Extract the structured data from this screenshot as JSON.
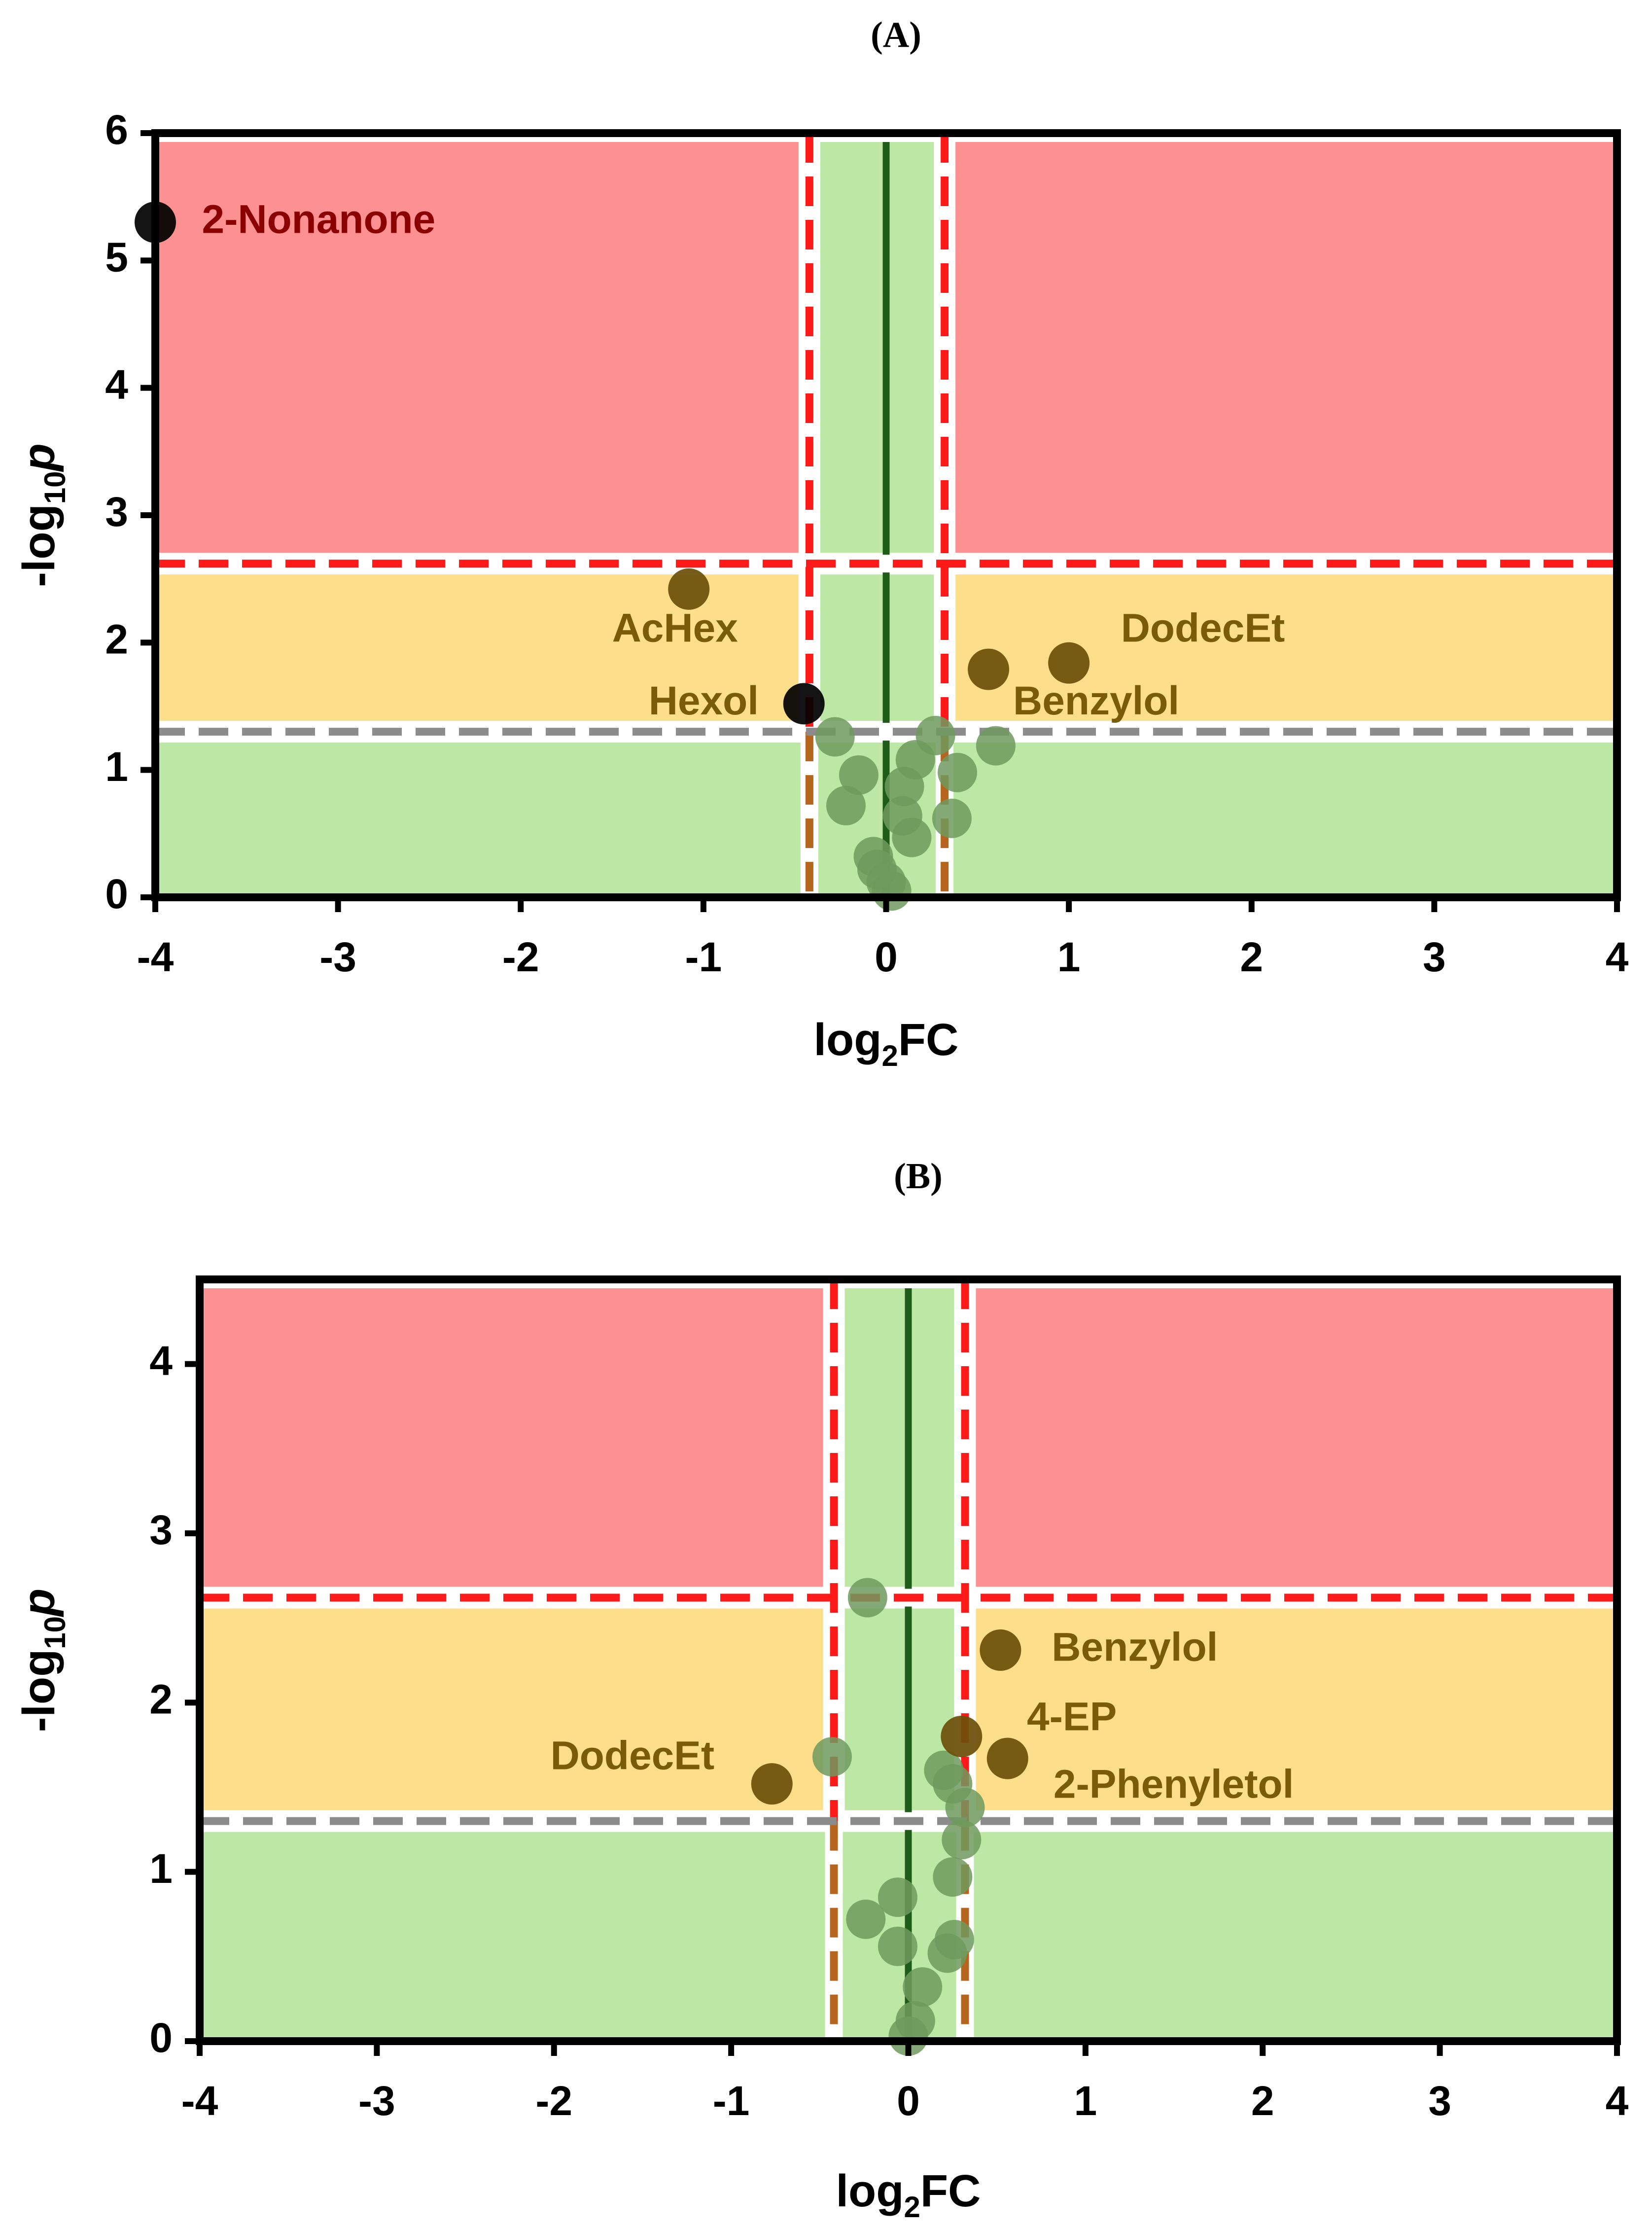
{
  "figure": {
    "panels": [
      "(A)",
      "(B)"
    ]
  },
  "colors": {
    "red_zone": "#fd9090",
    "yellow_zone": "#fddf8b",
    "green_zone": "#bde7a4",
    "center_line": "#1f5c1a",
    "threshold_red": "#ff1a1a",
    "threshold_gray": "#8c8c8c",
    "brown_dash": "#b5651d",
    "gray_point": "#6f9a5e",
    "gold_point": "#6b4f08",
    "gold_label": "#7a5c06",
    "red_label": "#8b0000",
    "black_point": "#000000",
    "axis": "#000000"
  },
  "chart_data": [
    {
      "type": "scatter",
      "title": "(A)",
      "xlabel_main": "log",
      "xlabel_sub": "2",
      "xlabel_tail": "FC",
      "ylabel_prefix": "-log",
      "ylabel_sub": "10",
      "ylabel_tail": "p",
      "xlim": [
        -4,
        4
      ],
      "ylim": [
        0,
        6
      ],
      "xticks": [
        -4,
        -3,
        -2,
        -1,
        0,
        1,
        2,
        3,
        4
      ],
      "yticks": [
        0,
        1,
        2,
        3,
        4,
        5,
        6
      ],
      "fc_low": -0.42,
      "fc_high": 0.32,
      "p_high": 2.62,
      "p_low": 1.3,
      "zone_x_inner": [
        -0.42,
        0.32
      ],
      "labeled_points": [
        {
          "x": -4.0,
          "y": 5.3,
          "label": "2-Nonanone",
          "class": "black",
          "label_dx": 0.12,
          "label_dy": 0,
          "label_color": "red"
        },
        {
          "x": -1.08,
          "y": 2.42,
          "label": "AcHex",
          "class": "gold",
          "label_dx": -0.42,
          "label_dy": -0.33,
          "label_color": "gold"
        },
        {
          "x": -0.45,
          "y": 1.52,
          "label": "Hexol",
          "class": "black",
          "label_dx": -0.85,
          "label_dy": 0,
          "label_color": "gold"
        },
        {
          "x": 0.56,
          "y": 1.79,
          "label": "Benzylol",
          "class": "gold",
          "label_dx": 0.0,
          "label_dy": -0.27,
          "label_color": "gold"
        },
        {
          "x": 1.0,
          "y": 1.84,
          "label": "DodecEt",
          "class": "gold",
          "label_dx": 0.15,
          "label_dy": 0.25,
          "label_color": "gold"
        }
      ],
      "background_points": [
        {
          "x": -0.28,
          "y": 1.26
        },
        {
          "x": -0.15,
          "y": 0.96
        },
        {
          "x": -0.22,
          "y": 0.72
        },
        {
          "x": 0.1,
          "y": 0.87
        },
        {
          "x": 0.16,
          "y": 1.08
        },
        {
          "x": 0.27,
          "y": 1.27
        },
        {
          "x": 0.39,
          "y": 0.98
        },
        {
          "x": 0.6,
          "y": 1.19
        },
        {
          "x": 0.09,
          "y": 0.64
        },
        {
          "x": 0.36,
          "y": 0.62
        },
        {
          "x": 0.14,
          "y": 0.47
        },
        {
          "x": -0.07,
          "y": 0.32
        },
        {
          "x": -0.05,
          "y": 0.22
        },
        {
          "x": 0.0,
          "y": 0.12
        },
        {
          "x": 0.03,
          "y": 0.05
        }
      ]
    },
    {
      "type": "scatter",
      "title": "(B)",
      "xlabel_main": "log",
      "xlabel_sub": "2",
      "xlabel_tail": "FC",
      "ylabel_prefix": "-log",
      "ylabel_sub": "10",
      "ylabel_tail": "p",
      "xlim": [
        -4,
        4
      ],
      "ylim": [
        0,
        4.5
      ],
      "xticks": [
        -4,
        -3,
        -2,
        -1,
        0,
        1,
        2,
        3,
        4
      ],
      "yticks": [
        0,
        1,
        2,
        3,
        4
      ],
      "fc_low": -0.42,
      "fc_high": 0.32,
      "p_high": 2.62,
      "p_low": 1.3,
      "zone_x_inner": [
        -0.42,
        0.32
      ],
      "labeled_points": [
        {
          "x": 0.52,
          "y": 2.31,
          "label": "Benzylol",
          "class": "gold",
          "label_dx": 0.15,
          "label_dy": 0,
          "label_color": "gold"
        },
        {
          "x": 0.3,
          "y": 1.8,
          "label": "4-EP",
          "class": "gold",
          "label_dx": 0.23,
          "label_dy": 0.1,
          "label_color": "gold"
        },
        {
          "x": 0.56,
          "y": 1.67,
          "label": "2-Phenyletol",
          "class": "gold",
          "label_dx": 0.12,
          "label_dy": -0.17,
          "label_color": "gold"
        },
        {
          "x": -0.77,
          "y": 1.52,
          "label": "DodecEt",
          "class": "gold",
          "label_dx": -1.25,
          "label_dy": 0.15,
          "label_color": "gold"
        }
      ],
      "background_points": [
        {
          "x": -0.23,
          "y": 2.62
        },
        {
          "x": -0.43,
          "y": 1.68
        },
        {
          "x": 0.2,
          "y": 1.6
        },
        {
          "x": 0.25,
          "y": 1.52
        },
        {
          "x": 0.32,
          "y": 1.38
        },
        {
          "x": 0.3,
          "y": 1.19
        },
        {
          "x": 0.25,
          "y": 0.97
        },
        {
          "x": -0.06,
          "y": 0.85
        },
        {
          "x": -0.24,
          "y": 0.72
        },
        {
          "x": -0.06,
          "y": 0.56
        },
        {
          "x": 0.26,
          "y": 0.6
        },
        {
          "x": 0.22,
          "y": 0.52
        },
        {
          "x": 0.08,
          "y": 0.32
        },
        {
          "x": 0.04,
          "y": 0.12
        },
        {
          "x": 0.0,
          "y": 0.03
        }
      ]
    }
  ]
}
